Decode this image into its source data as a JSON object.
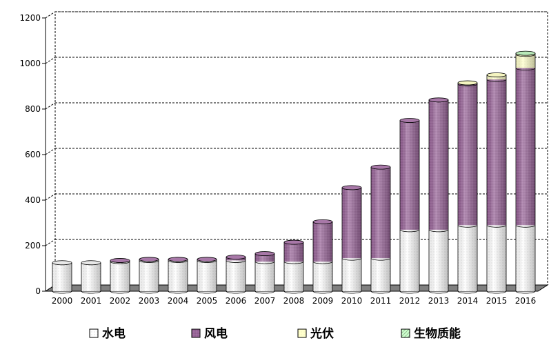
{
  "chart_data": {
    "type": "bar",
    "stacked": true,
    "style": "3d-cylinder",
    "categories": [
      "2000",
      "2001",
      "2002",
      "2003",
      "2004",
      "2005",
      "2006",
      "2007",
      "2008",
      "2009",
      "2010",
      "2011",
      "2012",
      "2013",
      "2014",
      "2015",
      "2016"
    ],
    "series": [
      {
        "name": "水电",
        "color": "#ffffff",
        "values": [
          125,
          125,
          130,
          135,
          135,
          135,
          135,
          130,
          130,
          130,
          145,
          145,
          270,
          270,
          290,
          290,
          290
        ]
      },
      {
        "name": "风电",
        "color": "#996699",
        "values": [
          0,
          0,
          5,
          5,
          5,
          5,
          15,
          35,
          85,
          175,
          310,
          400,
          480,
          570,
          620,
          640,
          690
        ]
      },
      {
        "name": "光伏",
        "color": "#ffffcc",
        "values": [
          0,
          0,
          0,
          0,
          0,
          0,
          0,
          0,
          0,
          0,
          0,
          0,
          0,
          0,
          5,
          20,
          60
        ]
      },
      {
        "name": "生物质能",
        "color": "#ccffcc",
        "values": [
          0,
          0,
          0,
          0,
          0,
          0,
          0,
          0,
          0,
          0,
          0,
          0,
          0,
          0,
          0,
          0,
          5
        ]
      }
    ],
    "yticks": [
      0,
      200,
      400,
      600,
      800,
      1000,
      1200
    ],
    "ylim": [
      0,
      1200
    ],
    "grid": true,
    "legend": "bottom",
    "title": "",
    "xlabel": "",
    "ylabel": ""
  }
}
